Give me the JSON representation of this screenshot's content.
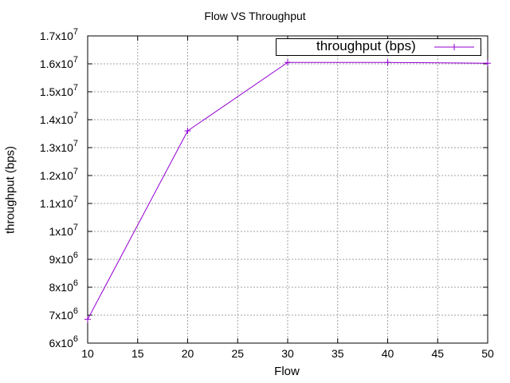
{
  "chart_data": {
    "type": "line",
    "title": "Flow VS Throughput",
    "xlabel": "Flow",
    "ylabel": "throughput (bps)",
    "x": [
      10,
      20,
      30,
      40,
      50
    ],
    "series": [
      {
        "name": "throughput (bps)",
        "values": [
          6850000,
          13600000,
          16050000,
          16050000,
          16020000
        ]
      }
    ],
    "xlim": [
      10,
      50
    ],
    "ylim": [
      6000000,
      17000000
    ],
    "xticks": [
      "10",
      "15",
      "20",
      "25",
      "30",
      "35",
      "40",
      "45",
      "50"
    ],
    "yticks": [
      {
        "mant": "6x10",
        "exp": "6"
      },
      {
        "mant": "7x10",
        "exp": "6"
      },
      {
        "mant": "8x10",
        "exp": "6"
      },
      {
        "mant": "9x10",
        "exp": "6"
      },
      {
        "mant": "1x10",
        "exp": "7"
      },
      {
        "mant": "1.1x10",
        "exp": "7"
      },
      {
        "mant": "1.2x10",
        "exp": "7"
      },
      {
        "mant": "1.3x10",
        "exp": "7"
      },
      {
        "mant": "1.4x10",
        "exp": "7"
      },
      {
        "mant": "1.5x10",
        "exp": "7"
      },
      {
        "mant": "1.6x10",
        "exp": "7"
      },
      {
        "mant": "1.7x10",
        "exp": "7"
      }
    ],
    "grid": true,
    "legend_position": "top-right",
    "line_color": "#9400d3"
  }
}
